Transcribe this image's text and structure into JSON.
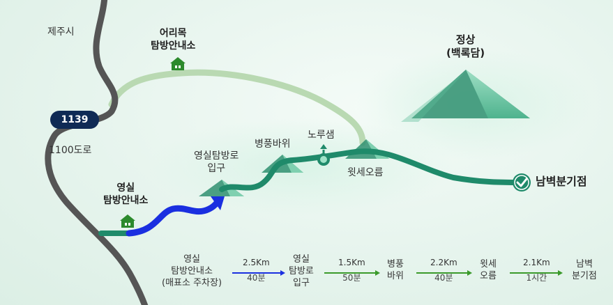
{
  "places": {
    "jeju_city": "제주시",
    "eorimok": "어리목\n탐방안내소",
    "summit": "정상\n(백록담)",
    "road_1100": "1100도로",
    "yeongsil_center": "영실\n탐방안내소",
    "yeongsil_trailhead": "영실탐방로\n입구",
    "byeongpung": "병풍바위",
    "noru": "노루샘",
    "witse": "윗세오름",
    "nambyeok": "남벽분기점"
  },
  "road_number": "1139",
  "legend": {
    "stops": [
      "영실\n탐방안내소\n(매표소 주차장)",
      "영실\n탐방로\n입구",
      "병풍\n바위",
      "윗세\n오름",
      "남벽\n분기점"
    ],
    "segments": [
      {
        "distance": "2.5Km",
        "time": "40분",
        "color": "#1a2fe0"
      },
      {
        "distance": "1.5Km",
        "time": "50분",
        "color": "#3a9a2a"
      },
      {
        "distance": "2.2Km",
        "time": "40분",
        "color": "#3a9a2a"
      },
      {
        "distance": "2.1Km",
        "time": "1시간",
        "color": "#3a9a2a"
      }
    ]
  },
  "colors": {
    "road": "#555555",
    "trail": "#1f8a6a",
    "eorimok_trail": "#b9d9b2",
    "walk_segment": "#1a2fe0",
    "mountain": "#3aa381",
    "house": "#2c8a2c"
  },
  "icons": [
    "house-icon",
    "check-circle-icon",
    "waypoint-marker-icon",
    "mountain-peak-icon"
  ]
}
